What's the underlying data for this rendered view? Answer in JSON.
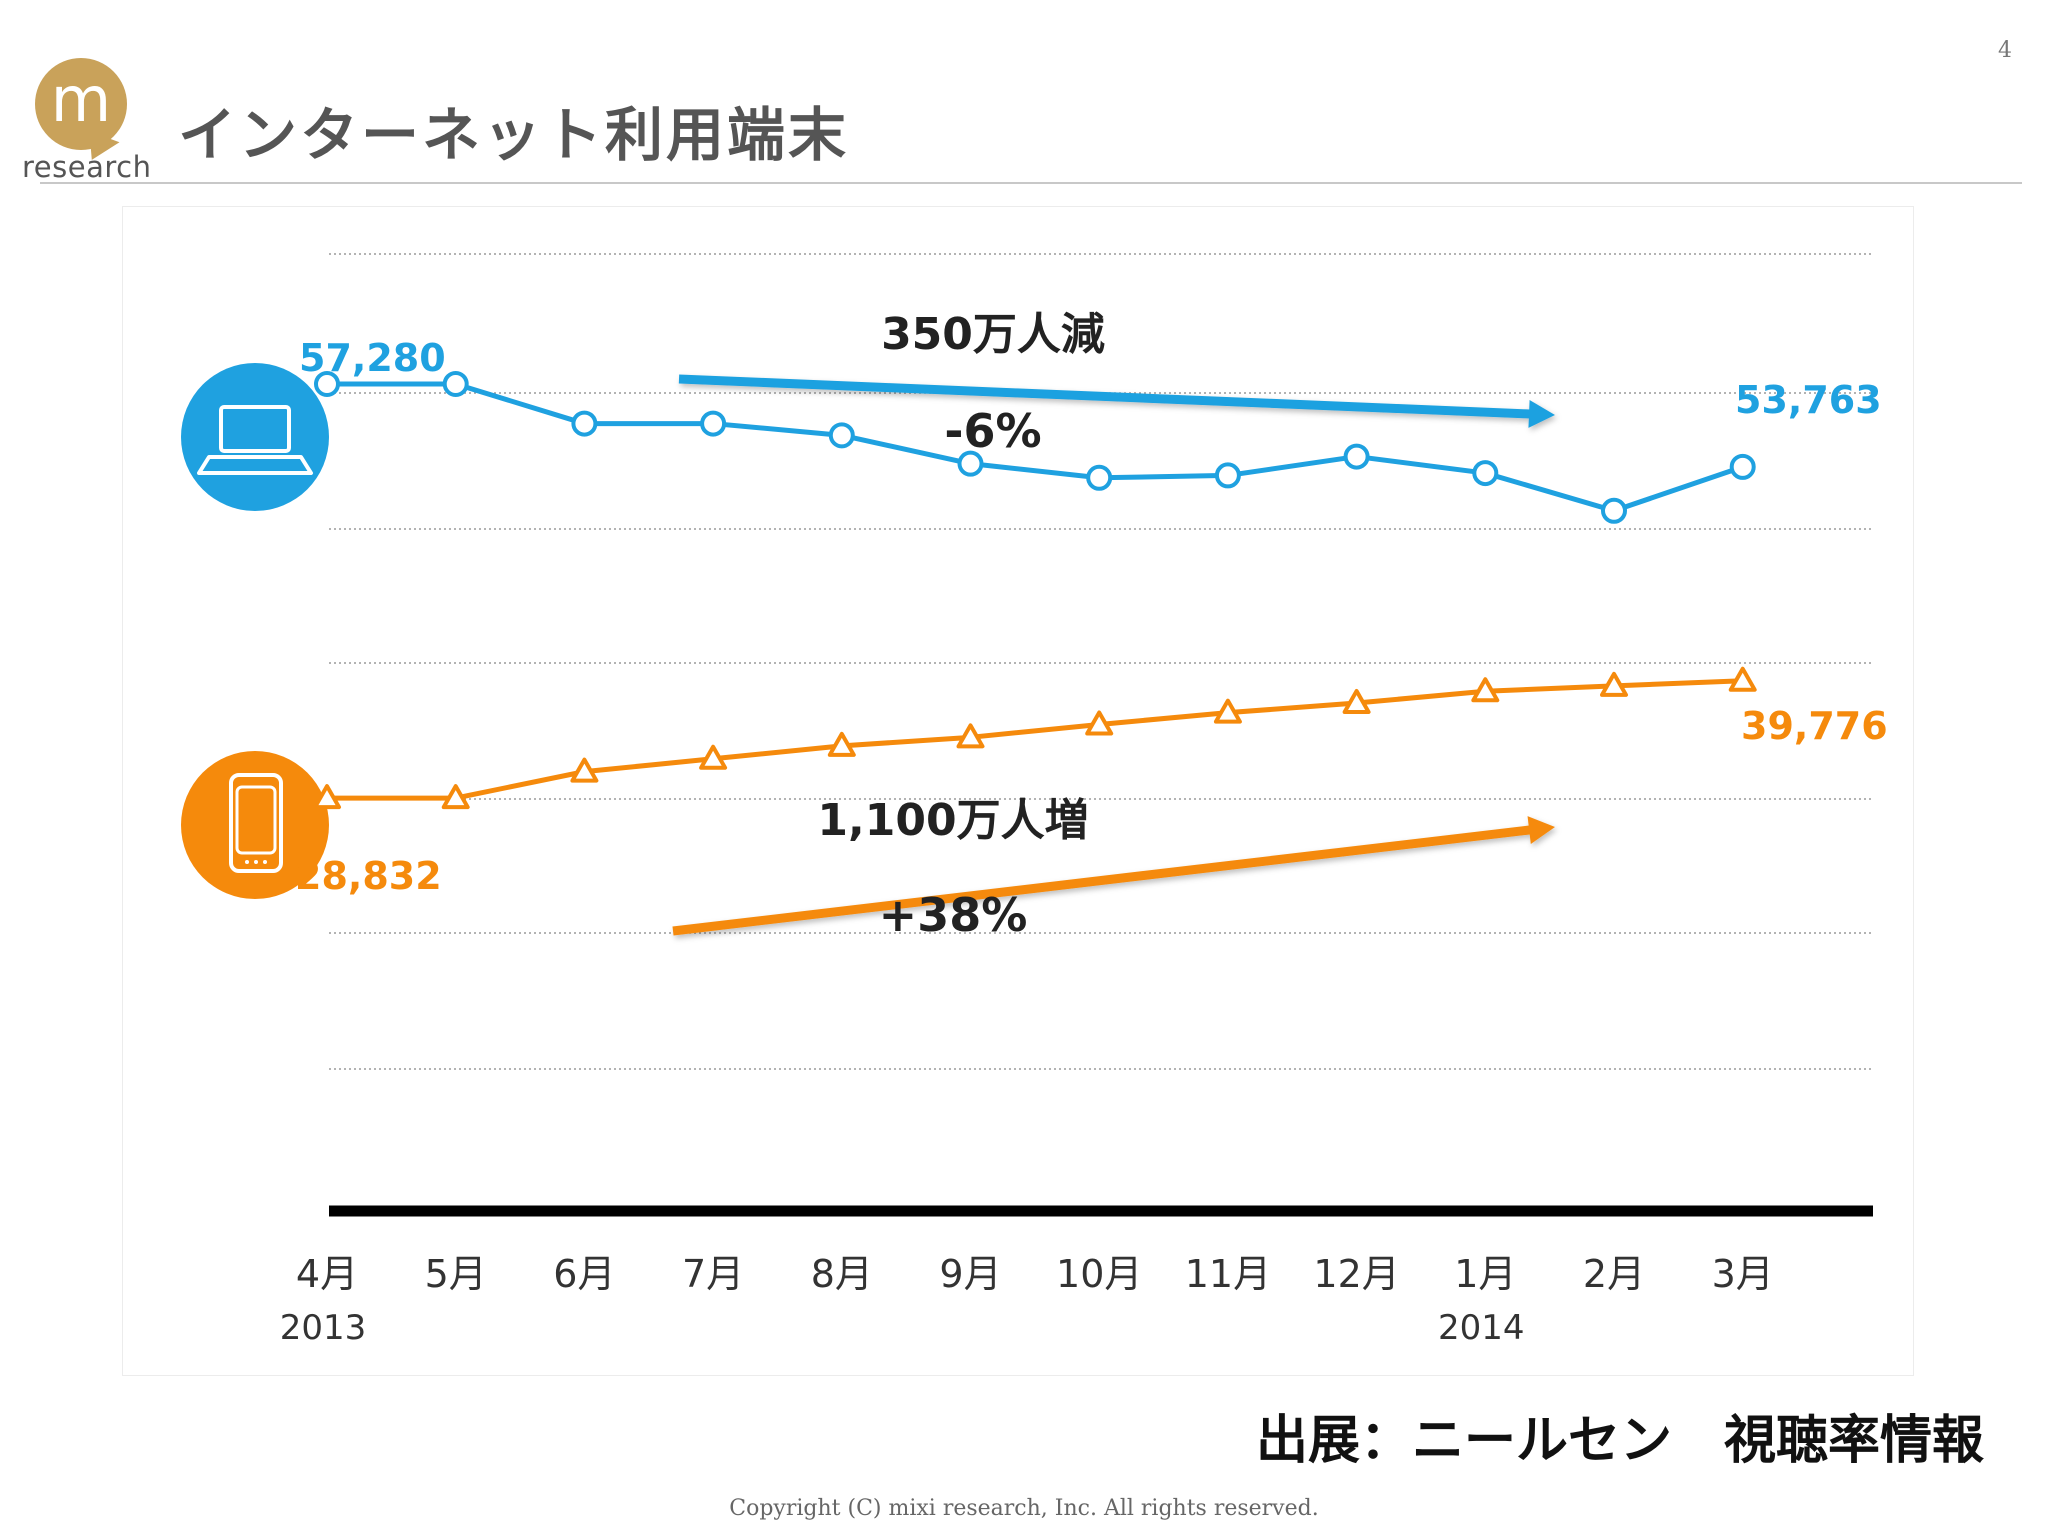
{
  "page_number": "4",
  "logo": {
    "text": "research",
    "letter": "m"
  },
  "title": "インターネット利用端末",
  "source": "出展：ニールセン　視聴率情報",
  "copyright": "Copyright (C) mixi research, Inc. All rights reserved.",
  "colors": {
    "pc": "#1fa1e0",
    "smartphone": "#f58a0c",
    "baseline": "#000000",
    "logo": "#c9a25a"
  },
  "icons": {
    "pc": "laptop-icon",
    "smartphone": "smartphone-icon"
  },
  "chart_data": {
    "type": "line",
    "categories": [
      "4月",
      "5月",
      "6月",
      "7月",
      "8月",
      "9月",
      "10月",
      "11月",
      "12月",
      "1月",
      "2月",
      "3月"
    ],
    "year_labels": [
      {
        "category": "4月",
        "text": "2013"
      },
      {
        "category": "1月",
        "text": "2014"
      }
    ],
    "grid": "dotted-horizontal",
    "series": [
      {
        "marker": "circle",
        "values": [
          57280,
          57280,
          55600,
          55600,
          55100,
          53900,
          53300,
          53400,
          54200,
          53500,
          51900,
          53763
        ],
        "start_label": "57,280",
        "end_label": "53,763",
        "trend_label": "350万人減",
        "change_label": "-6%"
      },
      {
        "marker": "triangle",
        "values": [
          28832,
          28832,
          31300,
          32500,
          33700,
          34500,
          35700,
          36800,
          37700,
          38800,
          39300,
          39776
        ],
        "start_label": "28,832",
        "end_label": "39,776",
        "trend_label": "1,100万人増",
        "change_label": "+38%"
      }
    ]
  }
}
